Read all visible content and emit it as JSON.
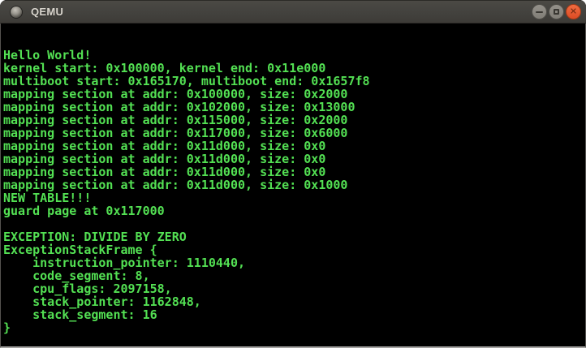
{
  "window": {
    "title": "QEMU",
    "icons": {
      "close": "✕"
    }
  },
  "theme": {
    "titlebar_background": "#45433f",
    "titlebar_text_color": "#dad6ce",
    "close_button_color": "#e4552b",
    "terminal_background": "#000000",
    "terminal_text_color": "#53e053"
  },
  "terminal": {
    "lines": [
      "Hello World!",
      "kernel start: 0x100000, kernel end: 0x11e000",
      "multiboot start: 0x165170, multiboot end: 0x1657f8",
      "mapping section at addr: 0x100000, size: 0x2000",
      "mapping section at addr: 0x102000, size: 0x13000",
      "mapping section at addr: 0x115000, size: 0x2000",
      "mapping section at addr: 0x117000, size: 0x6000",
      "mapping section at addr: 0x11d000, size: 0x0",
      "mapping section at addr: 0x11d000, size: 0x0",
      "mapping section at addr: 0x11d000, size: 0x0",
      "mapping section at addr: 0x11d000, size: 0x1000",
      "NEW TABLE!!!",
      "guard page at 0x117000",
      "",
      "EXCEPTION: DIVIDE BY ZERO",
      "ExceptionStackFrame {",
      "    instruction_pointer: 1110440,",
      "    code_segment: 8,",
      "    cpu_flags: 2097158,",
      "    stack_pointer: 1162848,",
      "    stack_segment: 16",
      "}"
    ]
  }
}
